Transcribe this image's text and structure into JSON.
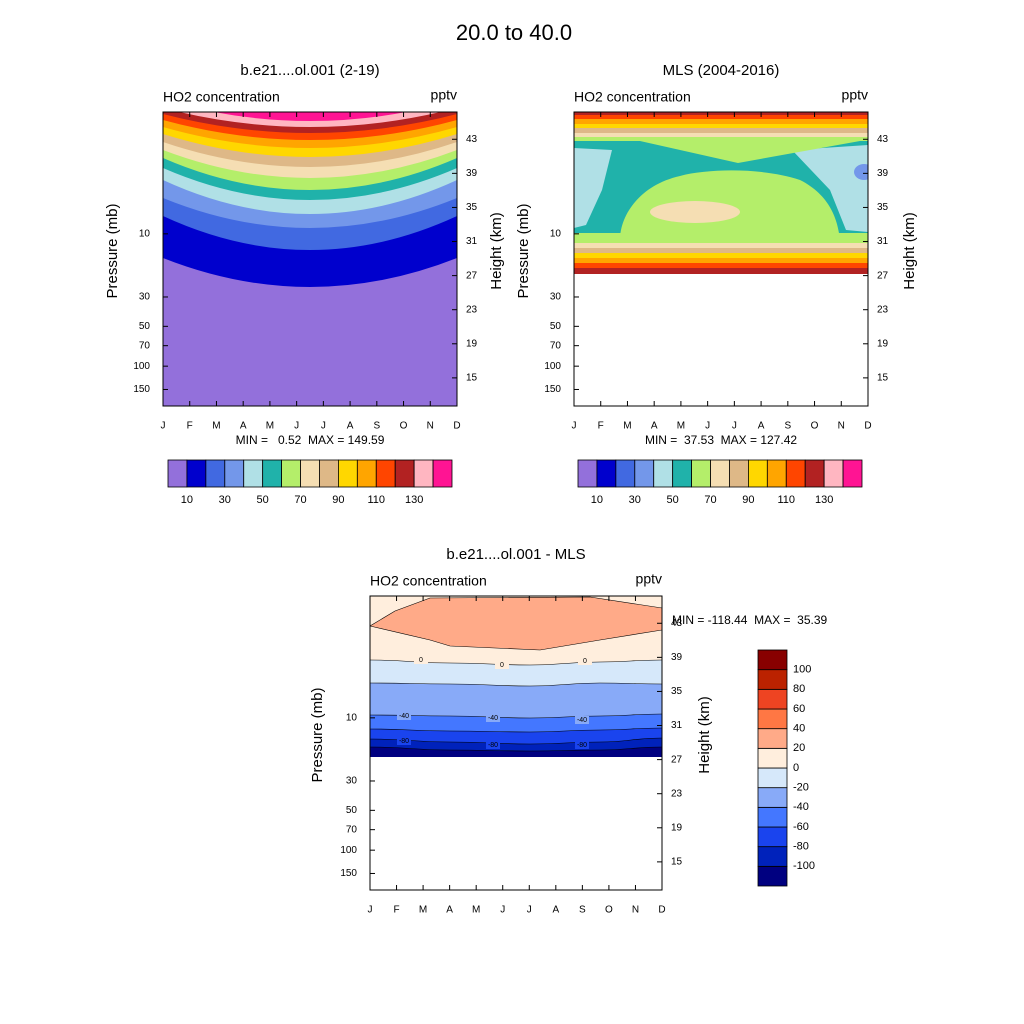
{
  "title": "20.0 to  40.0",
  "chart_data": [
    {
      "type": "contour",
      "title": "b.e21....ol.001 (2-19)",
      "left_string": "HO2 concentration",
      "right_string": "pptv",
      "ylabel": "Pressure (mb)",
      "y2label": "Height (km)",
      "categories": [
        "J",
        "F",
        "M",
        "A",
        "M",
        "J",
        "J",
        "A",
        "S",
        "O",
        "N",
        "D"
      ],
      "ylim": [
        200,
        1.2
      ],
      "ylog": true,
      "yticks": [
        10,
        30,
        50,
        70,
        100,
        150
      ],
      "y2lim": [
        11.7,
        46.2
      ],
      "y2ticks": [
        15,
        19,
        23,
        27,
        31,
        35,
        39,
        43
      ],
      "stats": "MIN =   0.52  MAX = 149.59",
      "colorbar": {
        "orientation": "horizontal",
        "colors": [
          "#9370db",
          "#0000cd",
          "#4169e1",
          "#7397ea",
          "#b0e0e6",
          "#20b2aa",
          "#b4ee6a",
          "#f5deb3",
          "#deb887",
          "#ffd700",
          "#ffa500",
          "#ff4500",
          "#b22222",
          "#ffb6c1",
          "#ff1493"
        ],
        "levels": [
          10,
          20,
          30,
          40,
          50,
          60,
          70,
          80,
          90,
          100,
          110,
          120,
          130,
          140
        ],
        "ticks": [
          10,
          30,
          50,
          70,
          90,
          110,
          130
        ]
      }
    },
    {
      "type": "contour",
      "title": "MLS (2004-2016)",
      "left_string": "HO2 concentration",
      "right_string": "pptv",
      "ylabel": "Pressure (mb)",
      "y2label": "Height (km)",
      "categories": [
        "J",
        "F",
        "M",
        "A",
        "M",
        "J",
        "J",
        "A",
        "S",
        "O",
        "N",
        "D"
      ],
      "ylim": [
        200,
        1.2
      ],
      "ylog": true,
      "yticks": [
        10,
        30,
        50,
        70,
        100,
        150
      ],
      "y2lim": [
        11.7,
        46.2
      ],
      "y2ticks": [
        15,
        19,
        23,
        27,
        31,
        35,
        39,
        43
      ],
      "stats": "MIN =  37.53  MAX = 127.42",
      "colorbar": {
        "orientation": "horizontal",
        "colors": [
          "#9370db",
          "#0000cd",
          "#4169e1",
          "#7397ea",
          "#b0e0e6",
          "#20b2aa",
          "#b4ee6a",
          "#f5deb3",
          "#deb887",
          "#ffd700",
          "#ffa500",
          "#ff4500",
          "#b22222",
          "#ffb6c1",
          "#ff1493"
        ],
        "levels": [
          10,
          20,
          30,
          40,
          50,
          60,
          70,
          80,
          90,
          100,
          110,
          120,
          130,
          140
        ],
        "ticks": [
          10,
          30,
          50,
          70,
          90,
          110,
          130
        ]
      }
    },
    {
      "type": "contour",
      "title": "b.e21....ol.001 - MLS",
      "left_string": "HO2 concentration",
      "right_string": "pptv",
      "ylabel": "Pressure (mb)",
      "y2label": "Height (km)",
      "categories": [
        "J",
        "F",
        "M",
        "A",
        "M",
        "J",
        "J",
        "A",
        "S",
        "O",
        "N",
        "D"
      ],
      "ylim": [
        200,
        1.2
      ],
      "ylog": true,
      "yticks": [
        10,
        30,
        50,
        70,
        100,
        150
      ],
      "y2lim": [
        11.7,
        46.2
      ],
      "y2ticks": [
        15,
        19,
        23,
        27,
        31,
        35,
        39,
        43
      ],
      "stats": "MIN = -118.44  MAX =  35.39",
      "contour_labels": [
        0,
        -40,
        -80
      ],
      "colorbar": {
        "orientation": "vertical",
        "colors": [
          "#000080",
          "#0022bb",
          "#1a44ee",
          "#4477ff",
          "#88aaf8",
          "#d6e8fa",
          "#ffeedd",
          "#ffaa88",
          "#ff7744",
          "#ee4422",
          "#bb2200",
          "#880000"
        ],
        "levels": [
          -100,
          -80,
          -60,
          -40,
          -20,
          0,
          20,
          40,
          60,
          80,
          100
        ],
        "ticks": [
          -100,
          -80,
          -60,
          -40,
          -20,
          0,
          20,
          40,
          60,
          80,
          100
        ]
      }
    }
  ]
}
